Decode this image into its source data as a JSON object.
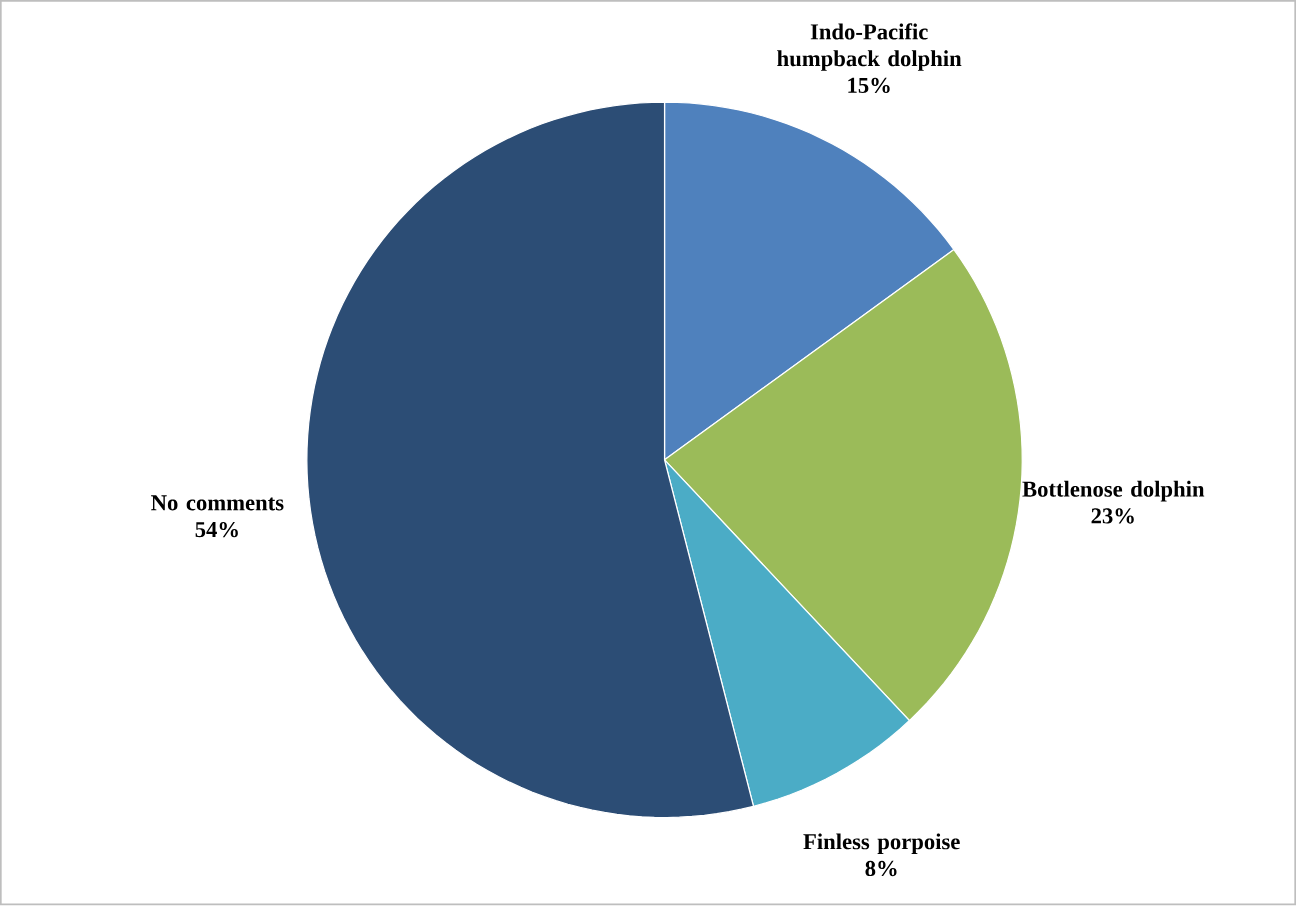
{
  "chart_data": {
    "type": "pie",
    "categories": [
      "Indo-Pacific humpback dolphin",
      "Bottlenose dolphin",
      "Finless porpoise",
      "No comments"
    ],
    "values": [
      15,
      23,
      8,
      54
    ],
    "colors": [
      "#4f81bd",
      "#9bbb59",
      "#4bacc6",
      "#2c4d75"
    ],
    "value_labels": [
      "15%",
      "23%",
      "8%",
      "54%"
    ]
  }
}
